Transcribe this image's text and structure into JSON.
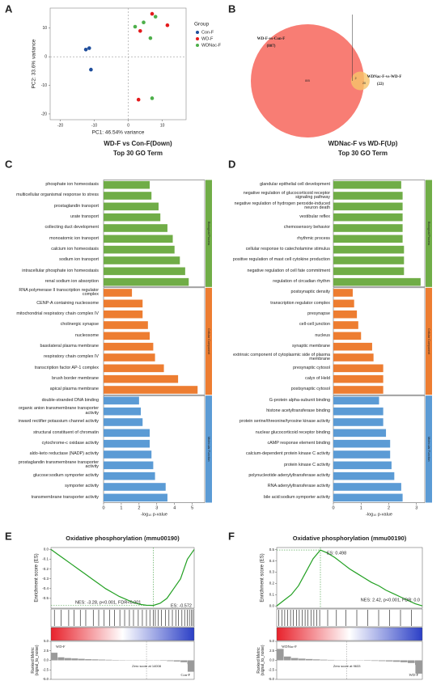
{
  "chart_data": [
    {
      "type": "scatter",
      "panel": "A",
      "xlabel": "PC1: 46.54% variance",
      "ylabel": "PC2: 33.6% variance",
      "xlim": [
        -23,
        17
      ],
      "ylim": [
        -22,
        17
      ],
      "xticks": [
        -20,
        -10,
        0,
        10
      ],
      "yticks": [
        -20,
        -10,
        0,
        10
      ],
      "legend_title": "Group",
      "series": [
        {
          "name": "Con-F",
          "color": "#1f4e9c",
          "x": [
            -12.5,
            -11.5,
            -11
          ],
          "values": [
            2.5,
            3,
            -4.5
          ]
        },
        {
          "name": "WD-F",
          "color": "#e41a1c",
          "x": [
            7,
            11.5,
            3.5,
            3
          ],
          "values": [
            15,
            11,
            9,
            -15
          ]
        },
        {
          "name": "WDNac-F",
          "color": "#4daf4a",
          "x": [
            2,
            4.5,
            8,
            6.5,
            7
          ],
          "values": [
            10.5,
            12,
            14,
            6.5,
            -14.5
          ]
        }
      ]
    },
    {
      "type": "venn",
      "panel": "B",
      "names": [
        "WD-F-vs-Con-F",
        "WDNac-F-vs-WD-F"
      ],
      "values": [
        807,
        22
      ],
      "value_labels": [
        "(807)",
        "(22)"
      ],
      "colors": [
        "#f8766d",
        "#f6c46a"
      ],
      "regions": {
        "only_first": 805,
        "both": 2,
        "only_second": 20
      }
    },
    {
      "type": "bar",
      "panel": "C",
      "orientation": "horizontal",
      "title": "WD-F vs Con-F(Down)",
      "subtitle": "Top 30 GO Term",
      "xlabel": "-log₁₀ p-value",
      "xlim": [
        0,
        5.7
      ],
      "xticks": [
        0,
        1,
        2,
        3,
        4,
        5
      ],
      "groups": [
        {
          "name": "Biological Process",
          "color": "#70ad47",
          "categories": [
            "phosphate ion homeostasis",
            "multicellular organismal response to stress",
            "prostaglandin transport",
            "urate transport",
            "collecting duct development",
            "monoatomic ion transport",
            "calcium ion homeostasis",
            "sodium ion transport",
            "intracellular phosphate ion homeostasis",
            "renal sodium ion absorption"
          ],
          "values": [
            2.6,
            2.7,
            3.1,
            3.2,
            3.6,
            3.9,
            4.0,
            4.3,
            4.6,
            4.8
          ]
        },
        {
          "name": "Cellular Component",
          "color": "#ed7d31",
          "categories": [
            "RNA polymerase II transcription regulator complex",
            "CENP-A containing nucleosome",
            "mitochondrial respiratory chain complex IV",
            "cholinergic synapse",
            "nucleosome",
            "basolateral plasma membrane",
            "respiratory chain complex IV",
            "transcription factor AP-1 complex",
            "brush border membrane",
            "apical plasma membrane"
          ],
          "values": [
            1.6,
            2.2,
            2.2,
            2.5,
            2.6,
            2.8,
            2.9,
            3.4,
            4.2,
            5.3
          ]
        },
        {
          "name": "Molecular Function",
          "color": "#5b9bd5",
          "categories": [
            "double-stranded DNA binding",
            "organic anion transmembrane transporter activity",
            "inward rectifier potassium channel activity",
            "structural constituent of chromatin",
            "cytochrome-c oxidase activity",
            "aldo-keto reductase (NADP) activity",
            "prostaglandin transmembrane transporter activity",
            "glucose:sodium symporter activity",
            "symporter activity",
            "transmembrane transporter activity"
          ],
          "values": [
            2.0,
            2.1,
            2.2,
            2.6,
            2.6,
            2.7,
            2.8,
            2.9,
            3.5,
            3.6
          ]
        }
      ]
    },
    {
      "type": "bar",
      "panel": "D",
      "orientation": "horizontal",
      "title": "WDNac-F vs WD-F(Up)",
      "subtitle": "Top 30 GO Term",
      "xlabel": "-log₁₀ p-value",
      "xlim": [
        0,
        3.3
      ],
      "xticks": [
        0,
        1,
        2,
        3
      ],
      "groups": [
        {
          "name": "Biological Process",
          "color": "#70ad47",
          "categories": [
            "glandular epithelial cell development",
            "negative regulation of glucocorticoid receptor signaling pathway",
            "negative regulation of hydrogen peroxide-induced neuron death",
            "vestibular reflex",
            "chemosensory behavior",
            "rhythmic process",
            "cellular response to catecholamine stimulus",
            "positive regulation of mast cell cytokine production",
            "negative regulation of cell fate commitment",
            "regulation of circadian rhythm"
          ],
          "values": [
            2.45,
            2.5,
            2.5,
            2.5,
            2.5,
            2.5,
            2.55,
            2.55,
            2.55,
            3.15
          ]
        },
        {
          "name": "Cellular Component",
          "color": "#ed7d31",
          "categories": [
            "postsynaptic density",
            "transcription regulator complex",
            "presynapse",
            "cell-cell junction",
            "nucleus",
            "synaptic membrane",
            "extrinsic component of cytoplasmic side of plasma membrane",
            "presynaptic cytosol",
            "calyx of Held",
            "postsynaptic cytosol"
          ],
          "values": [
            0.7,
            0.75,
            0.85,
            0.9,
            1.0,
            1.4,
            1.45,
            1.8,
            1.8,
            1.8
          ]
        },
        {
          "name": "Molecular Function",
          "color": "#5b9bd5",
          "categories": [
            "G-protein alpha-subunit binding",
            "histone acetyltransferase binding",
            "protein serine/threonine/tyrosine kinase activity",
            "nuclear glucocorticoid receptor binding",
            "cAMP response element binding",
            "calcium-dependent protein kinase C activity",
            "protein kinase C activity",
            "polynucleotide adenylyltransferase activity",
            "RNA adenylyltransferase activity",
            "bile acid:sodium symporter activity"
          ],
          "values": [
            1.65,
            1.8,
            1.8,
            1.9,
            2.05,
            2.05,
            2.1,
            2.2,
            2.45,
            2.5
          ]
        }
      ]
    },
    {
      "type": "gsea",
      "panel": "E",
      "title": "Oxidative phosphorylation (mmu00190)",
      "ylabel": "Enrichment score (ES)",
      "nes_label": "NES: -3.28, p<0.001, FDR<0.001",
      "es": {
        "value": -0.572,
        "label": "ES: -0.572"
      },
      "xlim": [
        0,
        21000
      ],
      "ylim": [
        -0.6,
        0.02
      ],
      "yticks": [
        {
          "value": 0,
          "label": "0.0"
        },
        {
          "value": -0.1,
          "label": "-0.1"
        },
        {
          "value": -0.2,
          "label": "-0.2"
        },
        {
          "value": -0.3,
          "label": "-0.3"
        },
        {
          "value": -0.4,
          "label": "-0.4"
        },
        {
          "value": -0.5,
          "label": "-0.5"
        }
      ],
      "x": [
        0,
        1000,
        2000,
        3000,
        4000,
        5000,
        6000,
        7000,
        8000,
        9000,
        10000,
        11000,
        12000,
        13000,
        14000,
        15000,
        16000,
        17000,
        18000,
        19000,
        20000,
        21000
      ],
      "values": [
        0,
        -0.05,
        -0.1,
        -0.15,
        -0.2,
        -0.25,
        -0.3,
        -0.35,
        -0.4,
        -0.44,
        -0.48,
        -0.51,
        -0.54,
        -0.56,
        -0.57,
        -0.572,
        -0.55,
        -0.5,
        -0.4,
        -0.3,
        -0.1,
        0
      ],
      "hits": [
        500,
        1500,
        2600,
        3400,
        4300,
        5100,
        6200,
        7000,
        7800,
        8600,
        9300,
        10100,
        10800,
        11500,
        12100,
        12800,
        13400,
        14000,
        14500,
        15000,
        15300,
        15700,
        16200,
        16800,
        17300,
        17800,
        18300,
        18700,
        19200,
        19600,
        20000,
        20300,
        20600,
        20800
      ],
      "metric_ylabel": "Ranked Metric (signal_to_noise)",
      "metric_ylim": [
        -5,
        5
      ],
      "metric_yticks": [
        {
          "value": 5,
          "label": "5.0"
        },
        {
          "value": 2.5,
          "label": "2.5"
        },
        {
          "value": 0,
          "label": "0.0"
        },
        {
          "value": -2.5,
          "label": "-2.5"
        },
        {
          "value": -5,
          "label": "-5.0"
        }
      ],
      "metric_values": [
        2.0,
        0.8,
        0.6,
        0.5,
        0.4,
        0.3,
        0.25,
        0.2,
        0.15,
        0.1,
        0.08,
        0.05,
        0.03,
        0.01,
        0.0,
        -0.05,
        -0.1,
        -0.2,
        -0.3,
        -0.5,
        -1.0,
        -3.0
      ],
      "left_label": "WD-F",
      "right_label": "Con-F",
      "zero_rank": {
        "value": 14008,
        "label": "Zero score at 14008"
      }
    },
    {
      "type": "gsea",
      "panel": "F",
      "title": "Oxidative phosphorylation (mmu00190)",
      "ylabel": "Enrichment score (ES)",
      "nes_label": "NES: 2.42, p<0.001, FDR: 0.0",
      "es": {
        "value": 0.498,
        "label": "ES: 0.498"
      },
      "xlim": [
        0,
        20000
      ],
      "ylim": [
        -0.02,
        0.52
      ],
      "yticks": [
        {
          "value": 0,
          "label": "0.0"
        },
        {
          "value": 0.1,
          "label": "0.1"
        },
        {
          "value": 0.2,
          "label": "0.2"
        },
        {
          "value": 0.3,
          "label": "0.3"
        },
        {
          "value": 0.4,
          "label": "0.4"
        },
        {
          "value": 0.5,
          "label": "0.5"
        }
      ],
      "x": [
        0,
        1000,
        2000,
        3000,
        4000,
        5000,
        6000,
        7000,
        8000,
        9000,
        10000,
        11000,
        12000,
        13000,
        14000,
        15000,
        16000,
        17000,
        18000,
        19000,
        20000
      ],
      "values": [
        0,
        0.05,
        0.1,
        0.18,
        0.3,
        0.42,
        0.498,
        0.47,
        0.43,
        0.38,
        0.33,
        0.29,
        0.25,
        0.21,
        0.18,
        0.14,
        0.11,
        0.08,
        0.05,
        0.02,
        0
      ],
      "hits": [
        300,
        700,
        1100,
        1500,
        1900,
        2300,
        2700,
        3100,
        3500,
        3900,
        4300,
        4700,
        5100,
        5500,
        5900,
        7000,
        8200,
        9500,
        11000,
        12500,
        14000,
        15500,
        17000,
        18500
      ],
      "metric_ylabel": "Ranked Metric (signal_to_noise)",
      "metric_ylim": [
        -5,
        5
      ],
      "metric_yticks": [
        {
          "value": 5,
          "label": "5.0"
        },
        {
          "value": 2.5,
          "label": "2.5"
        },
        {
          "value": 0,
          "label": "0.0"
        },
        {
          "value": -2.5,
          "label": "-2.5"
        },
        {
          "value": -5,
          "label": "-5.0"
        }
      ],
      "metric_values": [
        3.0,
        1.0,
        0.6,
        0.45,
        0.35,
        0.25,
        0.18,
        0.12,
        0.07,
        0.03,
        -0.02,
        -0.06,
        -0.1,
        -0.15,
        -0.2,
        -0.28,
        -0.38,
        -0.5,
        -0.7,
        -1.2,
        -3.5
      ],
      "left_label": "WDNac-F",
      "right_label": "WD-F",
      "zero_rank": {
        "value": 9633,
        "label": "Zero score at 9633"
      }
    }
  ]
}
